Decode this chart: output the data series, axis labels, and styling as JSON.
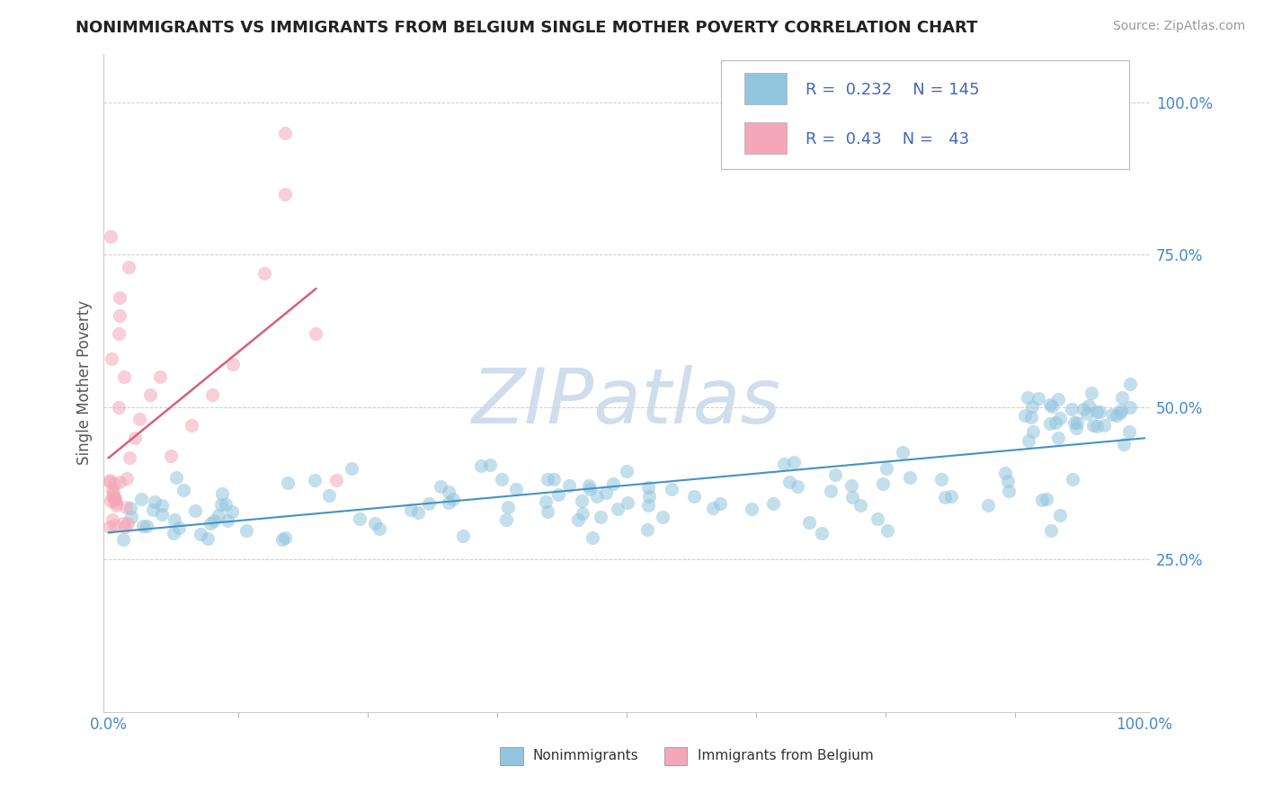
{
  "title": "NONIMMIGRANTS VS IMMIGRANTS FROM BELGIUM SINGLE MOTHER POVERTY CORRELATION CHART",
  "source": "Source: ZipAtlas.com",
  "ylabel": "Single Mother Poverty",
  "legend_label1": "Nonimmigrants",
  "legend_label2": "Immigrants from Belgium",
  "R1": 0.232,
  "N1": 145,
  "R2": 0.43,
  "N2": 43,
  "color_blue": "#92c5de",
  "color_pink": "#f4a7b9",
  "color_blue_line": "#4393c3",
  "color_pink_line": "#d6607a",
  "watermark_text": "ZIPatlas",
  "watermark_color": "#c8d8ea",
  "background_color": "#ffffff",
  "grid_color": "#cccccc",
  "tick_color": "#4488cc",
  "ylabel_color": "#555555",
  "title_color": "#222222",
  "source_color": "#999999",
  "legend_text_color": "#4466bb"
}
